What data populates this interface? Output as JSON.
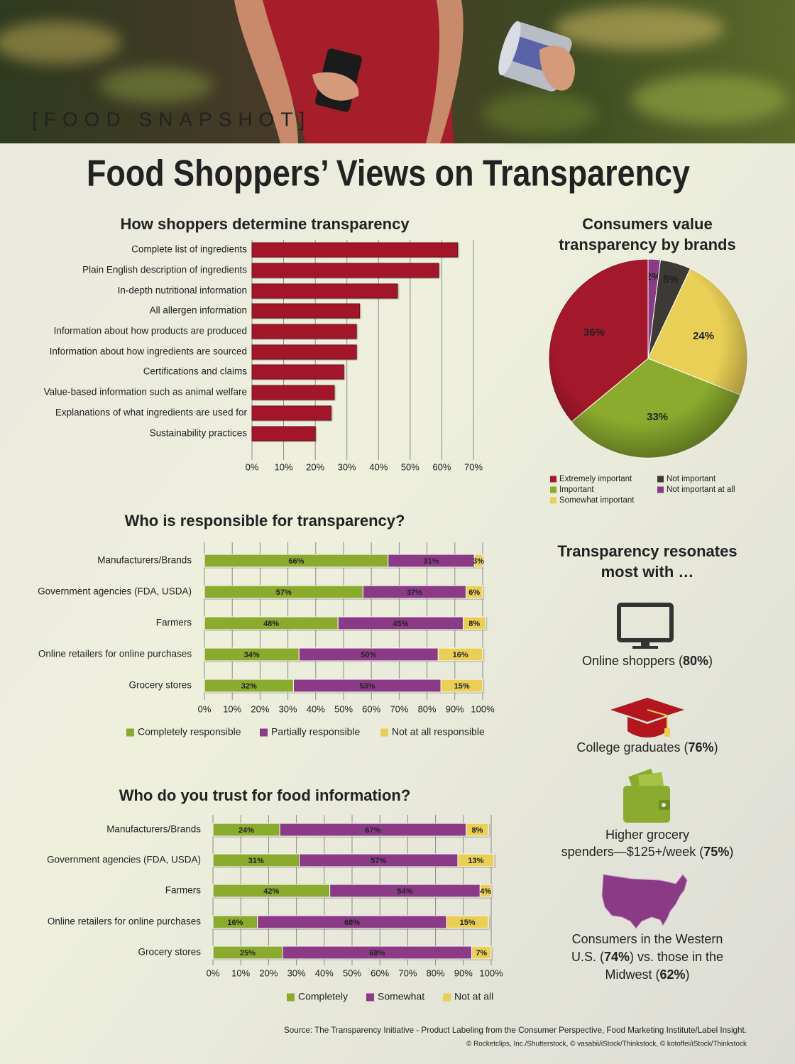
{
  "header": {
    "tag": "[FOOD SNAPSHOT]",
    "title": "Food Shoppers’ Views on Transparency"
  },
  "chart_data": [
    {
      "type": "bar",
      "orientation": "horizontal",
      "title": "How shoppers determine transparency",
      "categories": [
        "Complete list of ingredients",
        "Plain English description of ingredients",
        "In-depth nutritional information",
        "All allergen information",
        "Information about how products are produced",
        "Information about how ingredients are sourced",
        "Certifications and claims",
        "Value-based information such as animal welfare",
        "Explanations of what ingredients are used for",
        "Sustainability practices"
      ],
      "values": [
        65,
        59,
        46,
        34,
        33,
        33,
        29,
        26,
        25,
        20
      ],
      "color": "#a3182b",
      "xlim": [
        0,
        70
      ],
      "xticks": [
        {
          "value": 0,
          "label": "0%"
        },
        {
          "value": 10,
          "label": "10%"
        },
        {
          "value": 20,
          "label": "20%"
        },
        {
          "value": 30,
          "label": "30%"
        },
        {
          "value": 40,
          "label": "40%"
        },
        {
          "value": 50,
          "label": "50%"
        },
        {
          "value": 60,
          "label": "60%"
        },
        {
          "value": 70,
          "label": "70%"
        }
      ],
      "grid": true
    },
    {
      "type": "pie",
      "title": "Consumers value transparency by brands",
      "categories": [
        "Extremely important",
        "Important",
        "Somewhat important",
        "Not important",
        "Not important at all"
      ],
      "values": [
        36,
        33,
        24,
        5,
        2
      ],
      "value_labels": [
        "36%",
        "33%",
        "24%",
        "5%",
        "2%"
      ],
      "colors": [
        "#a3182b",
        "#8aab2e",
        "#e9cf56",
        "#3d3a36",
        "#8b3a86"
      ]
    },
    {
      "type": "stacked_bar",
      "orientation": "horizontal",
      "title": "Who is responsible for transparency?",
      "categories": [
        "Manufacturers/Brands",
        "Government agencies (FDA, USDA)",
        "Farmers",
        "Online retailers for online purchases",
        "Grocery stores"
      ],
      "series": [
        {
          "name": "Completely responsible",
          "color": "#8aab2e",
          "values": [
            66,
            57,
            48,
            34,
            32
          ],
          "value_labels": [
            "66%",
            "57%",
            "48%",
            "34%",
            "32%"
          ]
        },
        {
          "name": "Partially responsible",
          "color": "#8b3a86",
          "values": [
            31,
            37,
            45,
            50,
            53
          ],
          "value_labels": [
            "31%",
            "37%",
            "45%",
            "50%",
            "53%"
          ]
        },
        {
          "name": "Not at all responsible",
          "color": "#e9cf56",
          "values": [
            3,
            6,
            8,
            16,
            15
          ],
          "value_labels": [
            "3%",
            "6%",
            "8%",
            "16%",
            "15%"
          ]
        }
      ],
      "xlim": [
        0,
        100
      ],
      "xticks": [
        {
          "value": 0,
          "label": "0%"
        },
        {
          "value": 10,
          "label": "10%"
        },
        {
          "value": 20,
          "label": "20%"
        },
        {
          "value": 30,
          "label": "30%"
        },
        {
          "value": 40,
          "label": "40%"
        },
        {
          "value": 50,
          "label": "50%"
        },
        {
          "value": 60,
          "label": "60%"
        },
        {
          "value": 70,
          "label": "70%"
        },
        {
          "value": 80,
          "label": "80%"
        },
        {
          "value": 90,
          "label": "90%"
        },
        {
          "value": 100,
          "label": "100%"
        }
      ],
      "grid": true
    },
    {
      "type": "stacked_bar",
      "orientation": "horizontal",
      "title": "Who do you trust for food information?",
      "categories": [
        "Manufacturers/Brands",
        "Government agencies (FDA, USDA)",
        "Farmers",
        "Online retailers for online purchases",
        "Grocery stores"
      ],
      "series": [
        {
          "name": "Completely",
          "color": "#8aab2e",
          "values": [
            24,
            31,
            42,
            16,
            25
          ],
          "value_labels": [
            "24%",
            "31%",
            "42%",
            "16%",
            "25%"
          ]
        },
        {
          "name": "Somewhat",
          "color": "#8b3a86",
          "values": [
            67,
            57,
            54,
            68,
            68
          ],
          "value_labels": [
            "67%",
            "57%",
            "54%",
            "68%",
            "68%"
          ]
        },
        {
          "name": "Not at all",
          "color": "#e9cf56",
          "values": [
            8,
            13,
            4,
            15,
            7
          ],
          "value_labels": [
            "8%",
            "13%",
            "4%",
            "15%",
            "7%"
          ]
        }
      ],
      "xlim": [
        0,
        100
      ],
      "xticks": [
        {
          "value": 0,
          "label": "0%"
        },
        {
          "value": 10,
          "label": "10%"
        },
        {
          "value": 20,
          "label": "20%"
        },
        {
          "value": 30,
          "label": "30%"
        },
        {
          "value": 40,
          "label": "40%"
        },
        {
          "value": 50,
          "label": "50%"
        },
        {
          "value": 60,
          "label": "60%"
        },
        {
          "value": 70,
          "label": "70%"
        },
        {
          "value": 80,
          "label": "80%"
        },
        {
          "value": 90,
          "label": "90%"
        },
        {
          "value": 100,
          "label": "100%"
        }
      ],
      "grid": true
    }
  ],
  "resonates": {
    "title": "Transparency resonates most with …",
    "items": [
      {
        "lines": [
          [
            "Online shoppers (",
            "80%",
            ")"
          ]
        ]
      },
      {
        "lines": [
          [
            "College graduates (",
            "76%",
            ")"
          ]
        ]
      },
      {
        "lines": [
          [
            "Higher grocery"
          ],
          [
            "spenders—$125+/week (",
            "75%",
            ")"
          ]
        ]
      },
      {
        "lines": [
          [
            "Consumers in the Western"
          ],
          [
            "U.S. (",
            "74%",
            ") vs. those in the"
          ],
          [
            "Midwest (",
            "62%",
            ")"
          ]
        ]
      }
    ]
  },
  "source": "Source: The Transparency Initiative - Product Labeling from the Consumer Perspective, Food Marketing Institute/Label Insight.",
  "credits": "© Rocketclips, Inc./Shutterstock, © vasabii/iStock/Thinkstock, © kotoffei/iStock/Thinkstock"
}
